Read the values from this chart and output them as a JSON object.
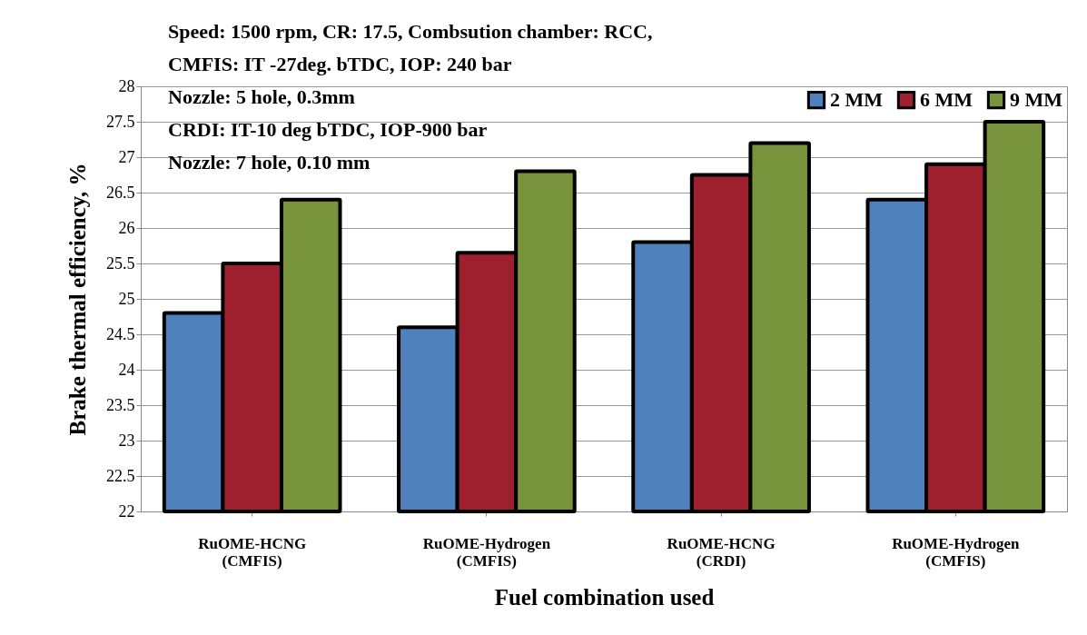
{
  "chart_data": {
    "type": "bar",
    "xlabel": "Fuel combination used",
    "ylabel": "Brake thermal efficiency, %",
    "categories": [
      "RuOME-HCNG\n(CMFIS)",
      "RuOME-Hydrogen\n(CMFIS)",
      "RuOME-HCNG\n(CRDI)",
      "RuOME-Hydrogen\n(CMFIS)"
    ],
    "series": [
      {
        "name": "2 MM",
        "color": "#4f81bd",
        "values": [
          24.8,
          24.6,
          25.8,
          26.4
        ]
      },
      {
        "name": "6 MM",
        "color": "#9e1f2d",
        "values": [
          25.5,
          25.65,
          26.75,
          26.9
        ]
      },
      {
        "name": "9 MM",
        "color": "#77933c",
        "values": [
          26.4,
          26.8,
          27.2,
          27.5
        ]
      }
    ],
    "ylim": [
      22,
      28
    ],
    "yticks": [
      22,
      22.5,
      23,
      23.5,
      24,
      24.5,
      25,
      25.5,
      26,
      26.5,
      27,
      27.5,
      28
    ],
    "grid": "y",
    "legend": "top right",
    "annotations": [
      "Speed: 1500 rpm, CR: 17.5, Combsution chamber: RCC,",
      "CMFIS: IT -27deg. bTDC, IOP: 240 bar",
      "Nozzle: 5 hole, 0.3mm",
      "CRDI: IT-10 deg bTDC, IOP-900 bar",
      "Nozzle: 7 hole, 0.10 mm"
    ]
  }
}
